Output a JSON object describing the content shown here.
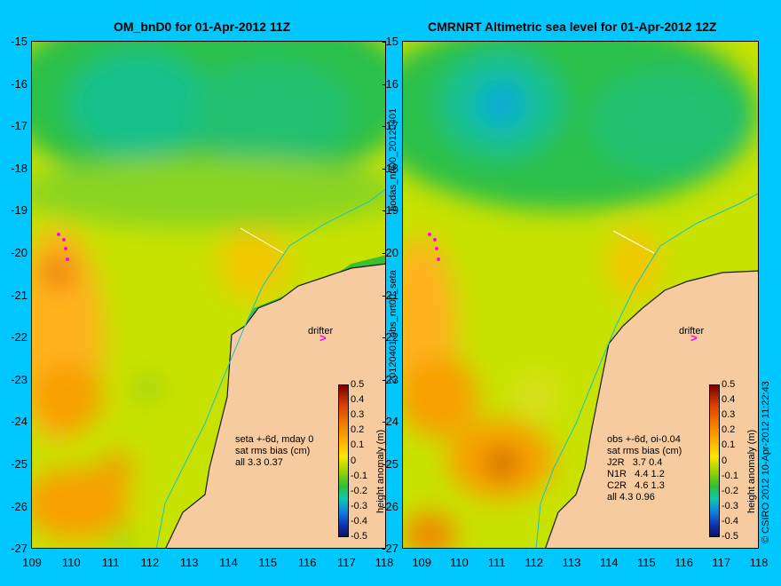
{
  "panels": [
    {
      "title": "OM_bnD0 for 01-Apr-2012 11Z",
      "note": "seta +-6d, mday 0\nsat rms bias (cm)\nall 3.3 0.37",
      "drifter": "drifter"
    },
    {
      "title": "CMRNRT Altimetric sea level  for 01-Apr-2012 12Z",
      "note": "obs +-6d, oi-0.04\nsat rms bias (cm)\nJ2R   3.7 0.4\nN1R   4.4 1.2\nC2R   4.6 1.3\nall 4.3 0.96",
      "drifter": "drifter"
    }
  ],
  "y_ticks": [
    "-15",
    "-16",
    "-17",
    "-18",
    "-19",
    "-20",
    "-21",
    "-22",
    "-23",
    "-24",
    "-25",
    "-26",
    "-27"
  ],
  "x_ticks_left": [
    "109",
    "110",
    "111",
    "112",
    "113",
    "114",
    "115",
    "116",
    "117"
  ],
  "x_ticks_right": [
    "118",
    "109",
    "110",
    "111",
    "112",
    "113",
    "114",
    "115",
    "116",
    "117",
    "118"
  ],
  "side_labels": {
    "middle_top": "bodas_nrt00_20120401",
    "middle_bottom": "20120401.obs_nrt00_seta",
    "right": "© CSIRO 2012   10-Apr-2012 11:22:43"
  },
  "colorbar": {
    "ticks": [
      "0.5",
      "0.4",
      "0.3",
      "0.2",
      "0.1",
      "0",
      "-0.1",
      "-0.2",
      "-0.3",
      "-0.4",
      "-0.5"
    ],
    "title": "height anomaly (m)"
  },
  "colors": {
    "background": "#00c8ff",
    "land": "#f7cba0",
    "coast": "#1a1a1a"
  }
}
